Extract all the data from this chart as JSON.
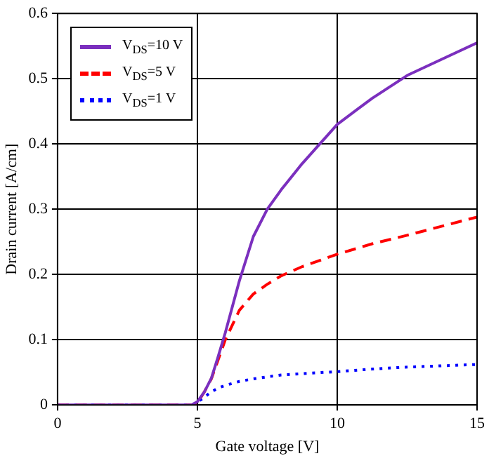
{
  "chart_data": {
    "type": "line",
    "xlabel": "Gate voltage [V]",
    "ylabel": "Drain current [A/cm]",
    "x": [
      0,
      4.8,
      5,
      5.25,
      5.5,
      5.75,
      6,
      6.5,
      7,
      7.5,
      8,
      8.75,
      10,
      11.25,
      12.5,
      13.75,
      15
    ],
    "series": [
      {
        "name": "V$_{DS}$=10 V",
        "color": "#7b2fbe",
        "line_style": "solid",
        "values": [
          0,
          0,
          0.005,
          0.02,
          0.041,
          0.075,
          0.111,
          0.19,
          0.258,
          0.3,
          0.33,
          0.37,
          0.43,
          0.47,
          0.505,
          0.53,
          0.555
        ]
      },
      {
        "name": "V$_{DS}$=5 V",
        "color": "#ff0000",
        "line_style": "dashed",
        "values": [
          0,
          0,
          0.003,
          0.02,
          0.04,
          0.07,
          0.1,
          0.145,
          0.17,
          0.185,
          0.198,
          0.212,
          0.231,
          0.247,
          0.26,
          0.274,
          0.288
        ]
      },
      {
        "name": "V$_{DS}$=1 V",
        "color": "#0000ff",
        "line_style": "dotted",
        "values": [
          0,
          0,
          0.004,
          0.012,
          0.02,
          0.026,
          0.03,
          0.036,
          0.04,
          0.043,
          0.046,
          0.048,
          0.051,
          0.055,
          0.058,
          0.06,
          0.062
        ]
      }
    ],
    "xlim": [
      0,
      15
    ],
    "xticks": [
      0,
      5,
      10,
      15
    ],
    "ylim": [
      0,
      0.6
    ],
    "yticks": [
      0,
      0.1,
      0.2,
      0.3,
      0.4,
      0.5,
      0.6
    ],
    "grid": true,
    "legend": "top left",
    "marker": "none"
  }
}
